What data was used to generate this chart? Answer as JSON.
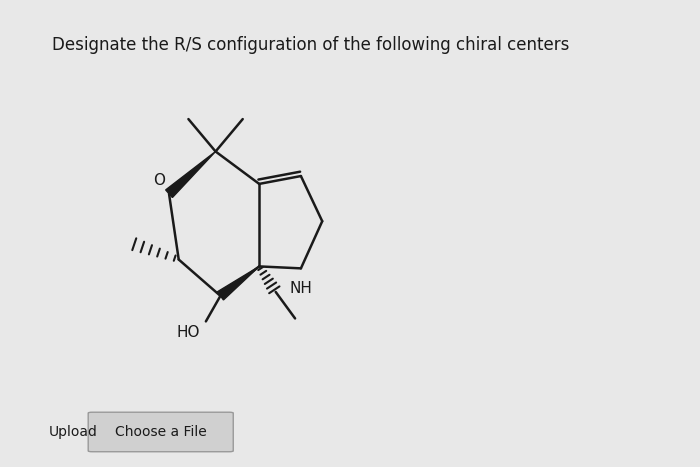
{
  "title": "Designate the R/S configuration of the following chiral centers",
  "title_fontsize": 12,
  "bg_color": "#e8e8e8",
  "text_color": "#1a1a1a",
  "upload_label": "Upload",
  "choose_file_label": "Choose a File",
  "mx": 2.18,
  "my": 2.42,
  "lw": 1.8,
  "bond_color": "#1a1a1a"
}
